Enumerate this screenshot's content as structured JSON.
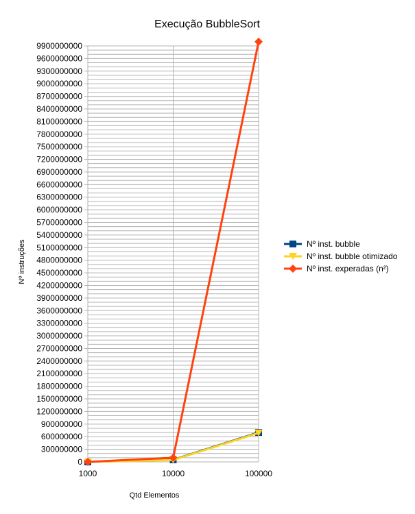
{
  "chart_data": {
    "type": "line",
    "title": "Execução BubbleSort",
    "xlabel": "Qtd Elementos",
    "ylabel": "Nº instruções",
    "categories": [
      "1000",
      "10000",
      "100000"
    ],
    "ylim": [
      0,
      9900000000
    ],
    "ytick_step": 300000000,
    "grid": true,
    "legend_position": "right",
    "series": [
      {
        "name": "Nº inst. bubble",
        "values": [
          1000000,
          50000000,
          700000000
        ],
        "color": "#004586",
        "marker": "square"
      },
      {
        "name": "Nº inst. bubble otimizado",
        "values": [
          1000000,
          45000000,
          690000000
        ],
        "color": "#ffd320",
        "marker": "triangle-down"
      },
      {
        "name": "Nº inst. experadas (n²)",
        "values": [
          1000000,
          100000000,
          10000000000
        ],
        "color": "#ff420e",
        "marker": "diamond"
      }
    ]
  }
}
